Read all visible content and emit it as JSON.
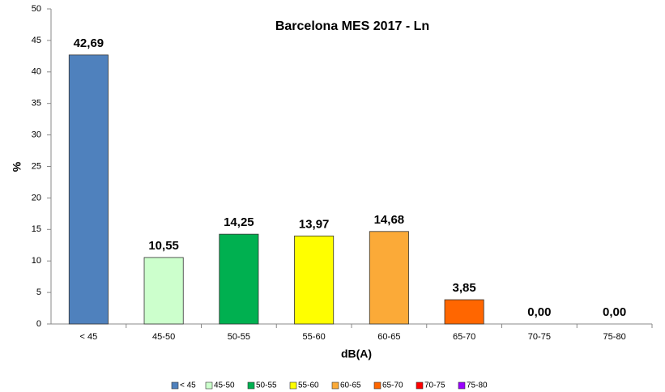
{
  "chart_data": {
    "type": "bar",
    "title": "Barcelona MES 2017 - Ln",
    "x_label": "dB(A)",
    "y_label": "%",
    "categories": [
      "< 45",
      "45-50",
      "50-55",
      "55-60",
      "60-65",
      "65-70",
      "70-75",
      "75-80"
    ],
    "values": [
      42.69,
      10.55,
      14.25,
      13.97,
      14.68,
      3.85,
      0.0,
      0.0
    ],
    "value_labels": [
      "42,69",
      "10,55",
      "14,25",
      "13,97",
      "14,68",
      "3,85",
      "0,00",
      "0,00"
    ],
    "colors": [
      "#4f81bd",
      "#ccffcc",
      "#00b050",
      "#ffff00",
      "#fbaa38",
      "#ff6600",
      "#ff0000",
      "#9900ff"
    ],
    "ylim": [
      0,
      50
    ],
    "yticks": [
      0,
      5,
      10,
      15,
      20,
      25,
      30,
      35,
      40,
      45,
      50
    ],
    "grid": false,
    "legend": "bottom"
  }
}
